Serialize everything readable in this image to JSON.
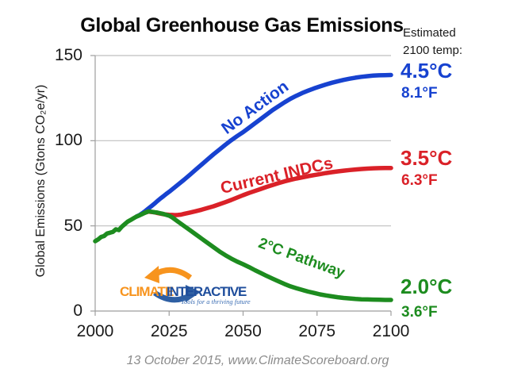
{
  "title": "Global Greenhouse Gas Emissions",
  "right_panel": {
    "heading_line1": "Estimated",
    "heading_line2": "2100 temp:"
  },
  "footer": {
    "caption": "13 October 2015, www.ClimateScoreboard.org"
  },
  "logo": {
    "word1": "CLIMATE",
    "word2": "INTERACTIVE",
    "tagline": "Tools for a thriving future",
    "orange": "#F7941E",
    "blue": "#2E5FA3",
    "text_blue": "#1F4E9C"
  },
  "colors": {
    "no_action": "#1742d0",
    "current_indcs": "#da2128",
    "two_c_pathway": "#1d8c1f",
    "grid": "#bfbfbf",
    "axis": "#9e9e9e"
  },
  "chart_data": {
    "type": "line",
    "title": "Global Greenhouse Gas Emissions",
    "xlabel": "",
    "ylabel": "Global Emissions (Gtons CO₂e/yr)",
    "xlim": [
      2000,
      2100
    ],
    "ylim": [
      0,
      150
    ],
    "xticks": [
      2000,
      2025,
      2050,
      2075,
      2100
    ],
    "yticks": [
      0,
      50,
      100,
      150
    ],
    "grid": "horizontal",
    "legend_position": "on-curve labels",
    "series": [
      {
        "name": "No Action",
        "label": "No Action",
        "color": "#1742d0",
        "estimated_2100_temp": {
          "c": "4.5°C",
          "f": "8.1°F"
        },
        "points": [
          [
            2014,
            55.5
          ],
          [
            2015,
            56.3
          ],
          [
            2016,
            57.5
          ],
          [
            2017,
            58.8
          ],
          [
            2018,
            60.2
          ],
          [
            2019,
            61.6
          ],
          [
            2020,
            63
          ],
          [
            2021,
            64.5
          ],
          [
            2022,
            66
          ],
          [
            2023,
            67.3
          ],
          [
            2024,
            68.7
          ],
          [
            2025,
            70
          ],
          [
            2026,
            71.4
          ],
          [
            2028,
            74.2
          ],
          [
            2030,
            77
          ],
          [
            2032,
            80
          ],
          [
            2034,
            83
          ],
          [
            2036,
            86
          ],
          [
            2038,
            89
          ],
          [
            2040,
            92
          ],
          [
            2042,
            94.8
          ],
          [
            2044,
            97.6
          ],
          [
            2046,
            100.3
          ],
          [
            2048,
            102.7
          ],
          [
            2050,
            105
          ],
          [
            2052,
            107.6
          ],
          [
            2054,
            110.2
          ],
          [
            2056,
            112.8
          ],
          [
            2058,
            115.4
          ],
          [
            2060,
            118
          ],
          [
            2062,
            120.3
          ],
          [
            2064,
            122.5
          ],
          [
            2066,
            124.6
          ],
          [
            2068,
            126.4
          ],
          [
            2070,
            128
          ],
          [
            2072,
            129.4
          ],
          [
            2074,
            130.7
          ],
          [
            2076,
            131.9
          ],
          [
            2078,
            133
          ],
          [
            2080,
            134
          ],
          [
            2082,
            134.9
          ],
          [
            2084,
            135.7
          ],
          [
            2086,
            136.4
          ],
          [
            2088,
            137
          ],
          [
            2090,
            137.5
          ],
          [
            2092,
            137.9
          ],
          [
            2094,
            138.2
          ],
          [
            2096,
            138.4
          ],
          [
            2098,
            138.5
          ],
          [
            2100,
            138.6
          ]
        ]
      },
      {
        "name": "Current INDCs",
        "label": "Current INDCs",
        "color": "#da2128",
        "estimated_2100_temp": {
          "c": "3.5°C",
          "f": "6.3°F"
        },
        "points": [
          [
            2017,
            57.8
          ],
          [
            2018,
            58.4
          ],
          [
            2019,
            58.2
          ],
          [
            2020,
            58
          ],
          [
            2021,
            57.6
          ],
          [
            2022,
            57.2
          ],
          [
            2023,
            56.9
          ],
          [
            2024,
            56.7
          ],
          [
            2025,
            56.5
          ],
          [
            2026,
            56.4
          ],
          [
            2027,
            56.3
          ],
          [
            2028,
            56.4
          ],
          [
            2029,
            56.6
          ],
          [
            2030,
            57
          ],
          [
            2032,
            57.8
          ],
          [
            2034,
            58.6
          ],
          [
            2036,
            59.5
          ],
          [
            2038,
            60.5
          ],
          [
            2040,
            61.5
          ],
          [
            2042,
            62.7
          ],
          [
            2044,
            63.9
          ],
          [
            2046,
            65.2
          ],
          [
            2048,
            66.6
          ],
          [
            2050,
            68
          ],
          [
            2052,
            69.3
          ],
          [
            2054,
            70.5
          ],
          [
            2056,
            71.7
          ],
          [
            2058,
            72.9
          ],
          [
            2060,
            74
          ],
          [
            2062,
            75.1
          ],
          [
            2064,
            76.1
          ],
          [
            2066,
            77
          ],
          [
            2068,
            77.8
          ],
          [
            2070,
            78.5
          ],
          [
            2072,
            79.2
          ],
          [
            2074,
            79.8
          ],
          [
            2076,
            80.4
          ],
          [
            2078,
            81
          ],
          [
            2080,
            81.5
          ],
          [
            2082,
            82
          ],
          [
            2084,
            82.4
          ],
          [
            2086,
            82.8
          ],
          [
            2088,
            83.1
          ],
          [
            2090,
            83.4
          ],
          [
            2092,
            83.6
          ],
          [
            2094,
            83.8
          ],
          [
            2096,
            83.9
          ],
          [
            2098,
            84
          ],
          [
            2100,
            84
          ]
        ]
      },
      {
        "name": "2°C Pathway",
        "label": "2°C Pathway",
        "color": "#1d8c1f",
        "estimated_2100_temp": {
          "c": "2.0°C",
          "f": "3.6°F"
        },
        "points": [
          [
            2000,
            41
          ],
          [
            2001,
            42
          ],
          [
            2002,
            43.5
          ],
          [
            2003,
            44
          ],
          [
            2004,
            45.5
          ],
          [
            2005,
            46
          ],
          [
            2006,
            46.5
          ],
          [
            2007,
            48
          ],
          [
            2008,
            47.5
          ],
          [
            2009,
            49.5
          ],
          [
            2010,
            51
          ],
          [
            2011,
            52.5
          ],
          [
            2012,
            53.5
          ],
          [
            2013,
            54.5
          ],
          [
            2014,
            55.5
          ],
          [
            2015,
            56.2
          ],
          [
            2016,
            57
          ],
          [
            2017,
            57.8
          ],
          [
            2018,
            58.5
          ],
          [
            2019,
            58.3
          ],
          [
            2020,
            58
          ],
          [
            2021,
            57.8
          ],
          [
            2022,
            57.4
          ],
          [
            2023,
            57
          ],
          [
            2024,
            56.5
          ],
          [
            2025,
            56
          ],
          [
            2026,
            55
          ],
          [
            2028,
            52.5
          ],
          [
            2030,
            50
          ],
          [
            2032,
            47.5
          ],
          [
            2034,
            45
          ],
          [
            2036,
            42.5
          ],
          [
            2038,
            40
          ],
          [
            2040,
            37.5
          ],
          [
            2042,
            35
          ],
          [
            2044,
            32.8
          ],
          [
            2046,
            30.8
          ],
          [
            2048,
            29
          ],
          [
            2050,
            27.5
          ],
          [
            2052,
            25.8
          ],
          [
            2054,
            24
          ],
          [
            2056,
            22.3
          ],
          [
            2058,
            20.6
          ],
          [
            2060,
            19
          ],
          [
            2062,
            17.4
          ],
          [
            2064,
            15.9
          ],
          [
            2066,
            14.5
          ],
          [
            2068,
            13.4
          ],
          [
            2070,
            12.4
          ],
          [
            2072,
            11.4
          ],
          [
            2074,
            10.6
          ],
          [
            2076,
            9.8
          ],
          [
            2078,
            9.2
          ],
          [
            2080,
            8.6
          ],
          [
            2082,
            8.1
          ],
          [
            2084,
            7.7
          ],
          [
            2086,
            7.4
          ],
          [
            2088,
            7.1
          ],
          [
            2090,
            6.9
          ],
          [
            2092,
            6.8
          ],
          [
            2094,
            6.7
          ],
          [
            2096,
            6.6
          ],
          [
            2098,
            6.5
          ],
          [
            2100,
            6.5
          ]
        ]
      }
    ]
  }
}
